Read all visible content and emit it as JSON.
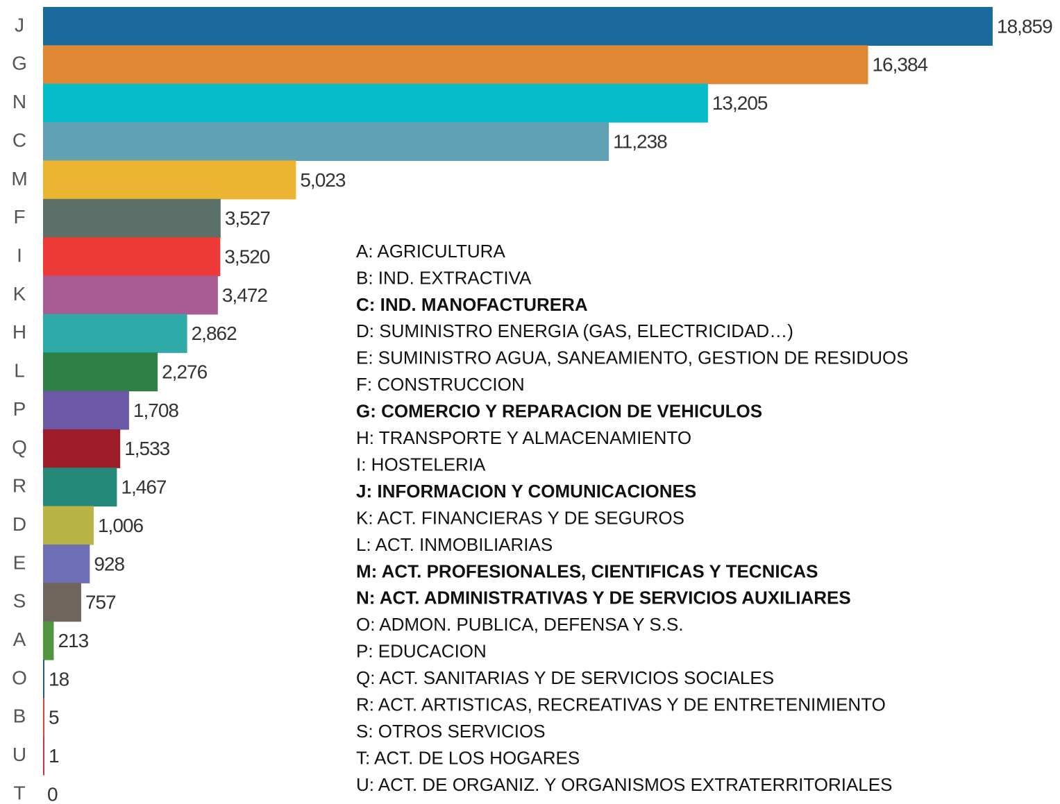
{
  "chart_data": {
    "type": "bar",
    "orientation": "horizontal",
    "categories": [
      "J",
      "G",
      "N",
      "C",
      "M",
      "F",
      "I",
      "K",
      "H",
      "L",
      "P",
      "Q",
      "R",
      "D",
      "E",
      "S",
      "A",
      "O",
      "B",
      "U",
      "T"
    ],
    "values": [
      18859,
      16384,
      13205,
      11238,
      5023,
      3527,
      3520,
      3472,
      2862,
      2276,
      1708,
      1533,
      1467,
      1006,
      928,
      757,
      213,
      18,
      5,
      1,
      0
    ],
    "value_labels": [
      "18,859",
      "16,384",
      "13,205",
      "11,238",
      "5,023",
      "3,527",
      "3,520",
      "3,472",
      "2,862",
      "2,276",
      "1,708",
      "1,533",
      "1,467",
      "1,006",
      "928",
      "757",
      "213",
      "18",
      "5",
      "1",
      "0"
    ],
    "colors": [
      "#1a6aa0",
      "#e08733",
      "#05bcc8",
      "#62a0b4",
      "#ebb531",
      "#5a7068",
      "#ee3a36",
      "#a95c94",
      "#2eaaa8",
      "#2e8046",
      "#6b59a8",
      "#9e1c2a",
      "#25897a",
      "#b8b446",
      "#6e6fb5",
      "#6f655e",
      "#52953e",
      "#1f5e7a",
      "#d9433f",
      "#c9334c",
      "#999999"
    ],
    "legend_items": [
      {
        "text": "A: AGRICULTURA",
        "bold": false
      },
      {
        "text": "B: IND. EXTRACTIVA",
        "bold": false
      },
      {
        "text": "C: IND. MANOFACTURERA",
        "bold": true
      },
      {
        "text": "D: SUMINISTRO ENERGIA (GAS, ELECTRICIDAD…)",
        "bold": false
      },
      {
        "text": "E: SUMINISTRO AGUA, SANEAMIENTO, GESTION DE RESIDUOS",
        "bold": false
      },
      {
        "text": "F: CONSTRUCCION",
        "bold": false
      },
      {
        "text": "G: COMERCIO Y REPARACION DE VEHICULOS",
        "bold": true
      },
      {
        "text": "H: TRANSPORTE Y ALMACENAMIENTO",
        "bold": false
      },
      {
        "text": "I:  HOSTELERIA",
        "bold": false
      },
      {
        "text": "J:  INFORMACION Y COMUNICACIONES",
        "bold": true
      },
      {
        "text": "K: ACT. FINANCIERAS Y DE SEGUROS",
        "bold": false
      },
      {
        "text": "L:  ACT. INMOBILIARIAS",
        "bold": false
      },
      {
        "text": "M: ACT. PROFESIONALES, CIENTIFICAS Y TECNICAS",
        "bold": true
      },
      {
        "text": "N: ACT. ADMINISTRATIVAS Y DE SERVICIOS AUXILIARES",
        "bold": true
      },
      {
        "text": "O: ADMON. PUBLICA, DEFENSA Y S.S.",
        "bold": false
      },
      {
        "text": "P: EDUCACION",
        "bold": false
      },
      {
        "text": "Q: ACT. SANITARIAS Y DE SERVICIOS SOCIALES",
        "bold": false
      },
      {
        "text": "R: ACT. ARTISTICAS, RECREATIVAS Y DE ENTRETENIMIENTO",
        "bold": false
      },
      {
        "text": "S: OTROS SERVICIOS",
        "bold": false
      },
      {
        "text": "T: ACT. DE LOS HOGARES",
        "bold": false
      },
      {
        "text": "U: ACT. DE ORGANIZ. Y ORGANISMOS EXTRATERRITORIALES",
        "bold": false
      }
    ]
  }
}
